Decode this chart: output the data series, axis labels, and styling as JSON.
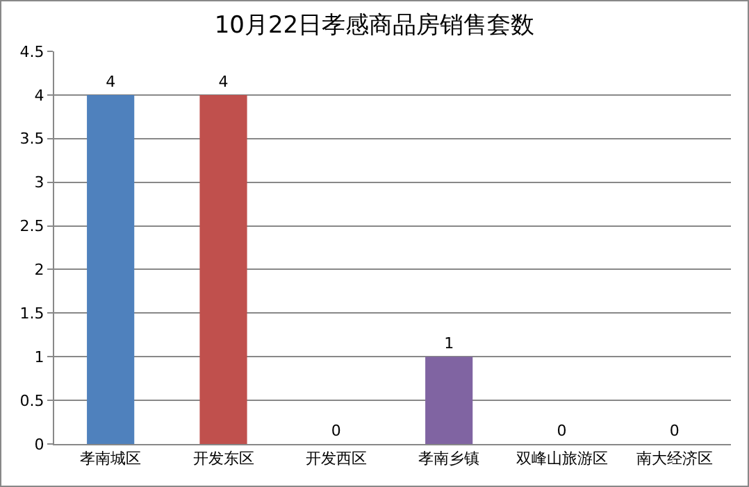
{
  "chart_data": {
    "type": "bar",
    "title": "10月22日孝感商品房销售套数",
    "categories": [
      "孝南城区",
      "开发东区",
      "开发西区",
      "孝南乡镇",
      "双峰山旅游区",
      "南大经济区"
    ],
    "values": [
      4,
      4,
      0,
      1,
      0,
      0
    ],
    "colors": [
      "#4f81bd",
      "#c0504d",
      "#9bbb59",
      "#8064a2",
      "#4bacc6",
      "#f79646"
    ],
    "ylim": [
      0,
      4.5
    ],
    "yticks": [
      0,
      0.5,
      1,
      1.5,
      2,
      2.5,
      3,
      3.5,
      4,
      4.5
    ],
    "grid": "y",
    "data_labels": true
  }
}
